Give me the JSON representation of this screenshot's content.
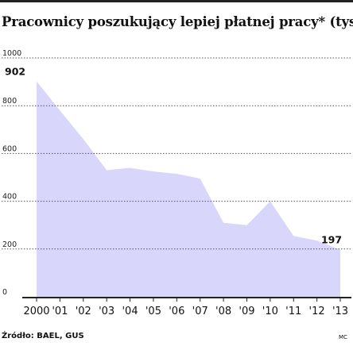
{
  "title": "Pracownicy poszukujący lepiej płatnej pracy* (tys.)",
  "source": "Źródło: BAEL, GUS",
  "credit": "MC",
  "chart_data": {
    "type": "area",
    "title": "Pracownicy poszukujący lepiej płatnej pracy* (tys.)",
    "xlabel": "",
    "ylabel": "",
    "ylim": [
      0,
      1000
    ],
    "yticks": [
      0,
      200,
      400,
      600,
      800,
      1000
    ],
    "ytick_labels": [
      "0",
      "200",
      "400",
      "600",
      "800",
      "1000"
    ],
    "categories": [
      "2000",
      "'01",
      "'02",
      "'03",
      "'04",
      "'05",
      "'06",
      "'07",
      "'08",
      "'09",
      "'10",
      "'11",
      "'12",
      "'13"
    ],
    "series": [
      {
        "values": [
          902,
          780,
          660,
          530,
          540,
          525,
          515,
          495,
          310,
          300,
          400,
          255,
          235,
          197
        ]
      }
    ],
    "annotations": [
      {
        "category": "2000",
        "text": "902"
      },
      {
        "category": "'13",
        "text": "197"
      }
    ],
    "fill_color": "#d8d6fa",
    "gridlines": "dotted",
    "legend": "none"
  }
}
